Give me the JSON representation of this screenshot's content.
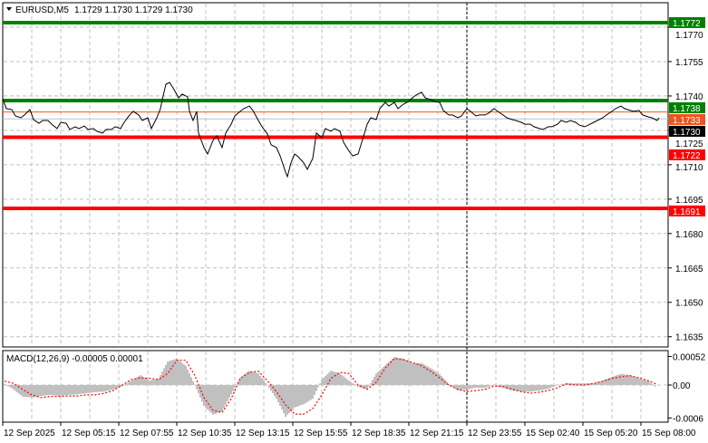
{
  "header": {
    "menu_icon": "triangle-down-icon",
    "symbol": "EURUSD,M5",
    "ohlc": "1.1729 1.1730 1.1729 1.1730"
  },
  "macd_legend": "MACD(12,26,9) -0.00005 0.00001",
  "colors": {
    "support_resistance_green": "#008000",
    "support_resistance_red": "#ff0000",
    "ask_line": "#f0531e",
    "bid_line": "#c0c0c0",
    "bid_label": "#000000",
    "price_line": "#000000",
    "macd_histogram": "#c0c0c0",
    "macd_signal": "#ff0000",
    "grid": "#c0c0c0"
  },
  "chart_data": {
    "type": "line",
    "symbol": "EURUSD",
    "timeframe": "M5",
    "ylim": [
      1.1627,
      1.1775
    ],
    "grid": true,
    "y_ticks": [
      "1.1770",
      "1.1755",
      "1.1740",
      "1.1725",
      "1.1710",
      "1.1695",
      "1.1680",
      "1.1665",
      "1.1650",
      "1.1635"
    ],
    "x_ticks": [
      {
        "bar": 0,
        "label": "12 Sep 2025"
      },
      {
        "bar": 32,
        "label": "12 Sep 05:15"
      },
      {
        "bar": 64,
        "label": "12 Sep 07:55"
      },
      {
        "bar": 96,
        "label": "12 Sep 10:35"
      },
      {
        "bar": 128,
        "label": "12 Sep 13:15"
      },
      {
        "bar": 160,
        "label": "12 Sep 15:55"
      },
      {
        "bar": 192,
        "label": "12 Sep 18:35"
      },
      {
        "bar": 224,
        "label": "12 Sep 21:15"
      },
      {
        "bar": 256,
        "label": "12 Sep 23:55"
      },
      {
        "bar": 288,
        "label": "15 Sep 02:40"
      },
      {
        "bar": 320,
        "label": "15 Sep 05:20"
      },
      {
        "bar": 352,
        "label": "15 Sep 08:00"
      }
    ],
    "cursor_bar": 256,
    "levels": [
      {
        "price": 1.1772,
        "label": "1.1772",
        "color": "#008000",
        "style": "thick"
      },
      {
        "price": 1.1738,
        "label": "1.1738",
        "color": "#008000",
        "style": "thick"
      },
      {
        "price": 1.1733,
        "label": "1.1733",
        "color": "#f0531e",
        "style": "thin"
      },
      {
        "price": 1.173,
        "label": "1.1730",
        "color": "#000000",
        "line_color": "#c0c0c0",
        "style": "thin"
      },
      {
        "price": 1.1722,
        "label": "1.1722",
        "color": "#ff0000",
        "style": "thick"
      },
      {
        "price": 1.1691,
        "label": "1.1691",
        "color": "#ff0000",
        "style": "thick"
      }
    ],
    "bars": [
      0,
      2,
      5,
      7,
      10,
      12,
      15,
      17,
      20,
      22,
      25,
      27,
      30,
      32,
      35,
      37,
      40,
      42,
      45,
      47,
      50,
      52,
      55,
      57,
      60,
      62,
      65,
      67,
      70,
      72,
      75,
      77,
      80,
      82,
      85,
      87,
      88,
      90,
      92,
      94,
      97,
      99,
      102,
      103,
      105,
      107,
      108,
      111,
      113,
      116,
      118,
      121,
      123,
      126,
      128,
      131,
      133,
      136,
      138,
      141,
      143,
      146,
      148,
      151,
      153,
      156,
      157,
      159,
      161,
      163,
      166,
      168,
      171,
      173,
      176,
      178,
      181,
      183,
      186,
      188,
      191,
      193,
      196,
      198,
      201,
      203,
      206,
      208,
      211,
      213,
      216,
      218,
      221,
      223,
      226,
      228,
      231,
      233,
      236,
      238,
      241,
      243,
      246,
      248,
      251,
      253,
      256,
      258,
      261,
      263,
      266,
      268,
      271,
      273,
      276,
      278,
      281,
      283,
      286,
      288,
      291,
      293,
      296,
      298,
      301,
      303,
      306,
      308,
      311,
      313,
      316,
      318,
      321,
      323,
      326,
      328,
      331,
      333,
      336,
      338,
      341,
      343,
      346,
      348,
      351,
      353,
      356,
      358,
      361,
      362
    ],
    "close": [
      1.17388,
      1.17345,
      1.17341,
      1.17313,
      1.17305,
      1.17317,
      1.17341,
      1.17297,
      1.17281,
      1.17293,
      1.17293,
      1.17277,
      1.17258,
      1.17285,
      1.17281,
      1.17254,
      1.17266,
      1.17258,
      1.17269,
      1.17254,
      1.17258,
      1.17246,
      1.17238,
      1.17254,
      1.17254,
      1.17266,
      1.17258,
      1.17285,
      1.17317,
      1.17333,
      1.17317,
      1.17293,
      1.17305,
      1.17258,
      1.17305,
      1.17345,
      1.17384,
      1.17451,
      1.17459,
      1.17435,
      1.17392,
      1.17408,
      1.17396,
      1.17333,
      1.17293,
      1.17333,
      1.17238,
      1.17175,
      1.17147,
      1.17206,
      1.17226,
      1.17175,
      1.17238,
      1.17277,
      1.17313,
      1.17333,
      1.17345,
      1.17356,
      1.17337,
      1.17293,
      1.17266,
      1.17234,
      1.17187,
      1.17175,
      1.17139,
      1.17068,
      1.17048,
      1.17108,
      1.17147,
      1.17135,
      1.17108,
      1.1708,
      1.17127,
      1.17238,
      1.17218,
      1.17258,
      1.17246,
      1.17258,
      1.17246,
      1.17198,
      1.17159,
      1.17139,
      1.17147,
      1.17198,
      1.17277,
      1.17305,
      1.17297,
      1.17345,
      1.17372,
      1.17356,
      1.17372,
      1.17345,
      1.17364,
      1.17372,
      1.17392,
      1.17404,
      1.17416,
      1.17392,
      1.17384,
      1.17376,
      1.17372,
      1.17337,
      1.17317,
      1.17317,
      1.17305,
      1.17313,
      1.17345,
      1.17333,
      1.17313,
      1.17317,
      1.17317,
      1.17325,
      1.17345,
      1.17333,
      1.17317,
      1.17305,
      1.17297,
      1.17293,
      1.17285,
      1.17277,
      1.17277,
      1.17266,
      1.17258,
      1.17254,
      1.17266,
      1.17266,
      1.17277,
      1.17293,
      1.17285,
      1.17293,
      1.17285,
      1.17273,
      1.17266,
      1.17273,
      1.17285,
      1.17293,
      1.17305,
      1.17317,
      1.17333,
      1.17345,
      1.17356,
      1.17345,
      1.17337,
      1.17333,
      1.17337,
      1.17317,
      1.17309,
      1.17305,
      1.17293,
      1.17305
    ],
    "macd": {
      "params": "12,26,9",
      "ylim": [
        -0.00066,
        0.00063
      ],
      "y_ticks": [
        "0.00052",
        "0.00",
        "-0.0006"
      ],
      "bars": [
        1,
        6,
        11,
        16,
        21,
        26,
        31,
        36,
        41,
        46,
        51,
        56,
        61,
        66,
        71,
        76,
        81,
        86,
        91,
        96,
        101,
        106,
        111,
        116,
        121,
        126,
        131,
        136,
        141,
        146,
        151,
        156,
        161,
        166,
        171,
        176,
        181,
        186,
        191,
        196,
        201,
        206,
        211,
        216,
        221,
        226,
        231,
        236,
        241,
        246,
        251,
        256,
        261,
        266,
        271,
        276,
        281,
        286,
        291,
        296,
        301,
        306,
        311,
        316,
        321,
        326,
        331,
        336,
        341,
        346,
        351,
        356,
        361
      ],
      "histogram": [
        2e-05,
        -8e-05,
        -0.00021,
        -0.00023,
        -0.0002,
        -0.00018,
        -0.0002,
        -0.00018,
        -0.00017,
        -0.00015,
        -0.00013,
        -0.00012,
        -8e-05,
        -2e-05,
        8e-05,
        0.00018,
        8e-05,
        0.00012,
        0.00043,
        0.00048,
        0.00035,
        0.0,
        -0.00038,
        -0.00054,
        -0.00048,
        -0.00017,
        0.00013,
        0.00026,
        0.00021,
        0.0,
        -0.00025,
        -0.00058,
        -0.00041,
        -0.00035,
        -0.00025,
        0.0001,
        0.00026,
        0.00021,
        8e-05,
        -3e-05,
        -8e-05,
        0.00021,
        0.00036,
        0.00051,
        0.00048,
        0.0004,
        0.0004,
        0.00031,
        0.0002,
        2e-05,
        -0.0001,
        -8e-05,
        -5e-05,
        -5e-05,
        0.0,
        -5e-05,
        -0.0001,
        -0.00012,
        -0.00012,
        -0.0001,
        -7e-05,
        0.0,
        3e-05,
        3e-05,
        3e-05,
        3e-05,
        8e-05,
        0.00015,
        0.0002,
        0.00018,
        0.00012,
        7e-05,
        -5e-05
      ],
      "signal": [
        7e-05,
        3e-05,
        -8e-05,
        -0.00018,
        -0.00023,
        -0.00021,
        -0.00021,
        -0.0002,
        -0.0002,
        -0.00018,
        -0.00018,
        -0.00015,
        -0.0001,
        0.0,
        0.0001,
        0.00013,
        0.00012,
        0.0001,
        0.00021,
        0.00045,
        0.00045,
        0.00017,
        -0.00023,
        -0.00046,
        -0.0005,
        -0.00025,
        0.00012,
        0.00023,
        0.00025,
        8e-05,
        -0.00012,
        -0.00036,
        -0.00053,
        -0.00053,
        -0.00043,
        -0.00018,
        0.00012,
        0.00023,
        0.00021,
        0.0,
        -8e-05,
        5e-05,
        0.00031,
        0.00048,
        0.00046,
        0.00041,
        0.00035,
        0.00025,
        0.00013,
        0.0,
        -8e-05,
        -0.00012,
        -0.0001,
        -8e-05,
        -2e-05,
        -3e-05,
        -8e-05,
        -0.00012,
        -0.00015,
        -0.00013,
        -0.0001,
        -5e-05,
        2e-05,
        0.0,
        0.0,
        3e-05,
        7e-05,
        0.00012,
        0.00015,
        0.00017,
        0.00013,
        8e-05,
        1e-05
      ]
    }
  }
}
